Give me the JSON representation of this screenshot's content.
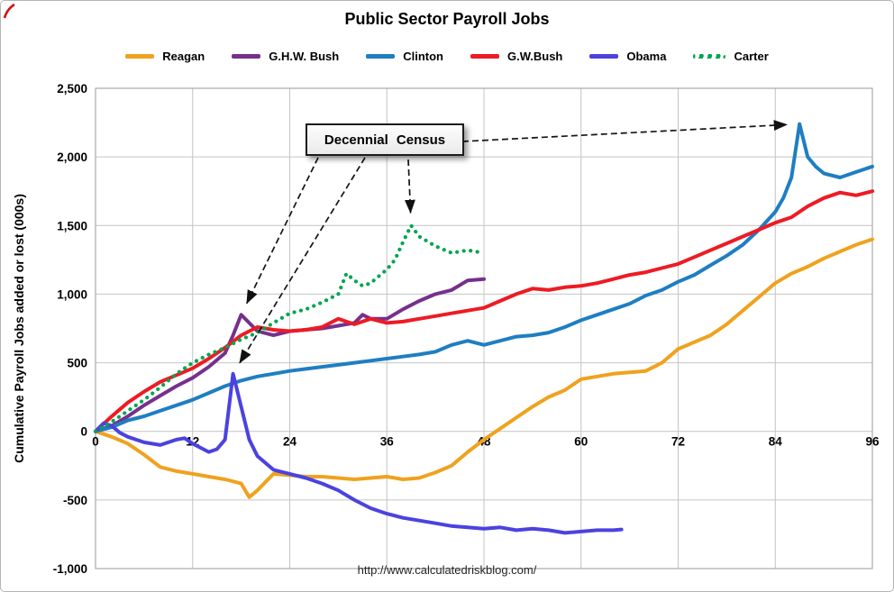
{
  "page": {
    "source_url": "http://www.calculatedriskblog.com/"
  },
  "chart_data": {
    "type": "line",
    "title": "Public Sector Payroll Jobs",
    "xlabel": "",
    "ylabel": "Cumulative Payroll Jobs added or lost (000s)",
    "xlim": [
      0,
      96
    ],
    "ylim": [
      -1000,
      2500
    ],
    "xticks": [
      0,
      12,
      24,
      36,
      48,
      60,
      72,
      84,
      96
    ],
    "yticks": [
      -1000,
      -500,
      0,
      500,
      1000,
      1500,
      2000,
      2500
    ],
    "grid": true,
    "legend_position": "top",
    "annotation": {
      "label": "Decennial Census",
      "targets": [
        {
          "series": "G.H.W. Bush",
          "x": 18,
          "y": 850
        },
        {
          "series": "Obama",
          "x": 17,
          "y": 420
        },
        {
          "series": "Carter",
          "x": 39,
          "y": 1500
        },
        {
          "series": "Clinton",
          "x": 87,
          "y": 2240
        }
      ]
    },
    "series": [
      {
        "name": "Reagan",
        "color": "#EFA21E",
        "style": "solid",
        "x": [
          0,
          2,
          4,
          6,
          8,
          10,
          12,
          14,
          16,
          18,
          19,
          20,
          22,
          24,
          26,
          28,
          30,
          32,
          34,
          36,
          38,
          40,
          42,
          44,
          46,
          48,
          50,
          52,
          54,
          56,
          58,
          60,
          62,
          64,
          66,
          68,
          70,
          72,
          74,
          76,
          78,
          80,
          82,
          84,
          86,
          88,
          90,
          92,
          94,
          96
        ],
        "y": [
          0,
          -40,
          -90,
          -170,
          -260,
          -290,
          -310,
          -330,
          -350,
          -380,
          -480,
          -430,
          -310,
          -320,
          -330,
          -330,
          -340,
          -350,
          -340,
          -330,
          -350,
          -340,
          -300,
          -250,
          -150,
          -60,
          20,
          100,
          180,
          250,
          300,
          380,
          400,
          420,
          430,
          440,
          500,
          600,
          650,
          700,
          780,
          880,
          980,
          1080,
          1150,
          1200,
          1260,
          1310,
          1360,
          1400
        ]
      },
      {
        "name": "G.H.W. Bush",
        "color": "#76308C",
        "style": "solid",
        "x": [
          0,
          2,
          4,
          6,
          8,
          10,
          12,
          14,
          16,
          17,
          18,
          19,
          20,
          22,
          24,
          26,
          28,
          30,
          32,
          33,
          34,
          36,
          38,
          40,
          42,
          44,
          46,
          48
        ],
        "y": [
          0,
          40,
          110,
          190,
          260,
          330,
          390,
          470,
          570,
          700,
          850,
          790,
          730,
          700,
          730,
          740,
          750,
          770,
          790,
          850,
          820,
          820,
          890,
          950,
          1000,
          1030,
          1100,
          1110
        ]
      },
      {
        "name": "Clinton",
        "color": "#1F7EC2",
        "style": "solid",
        "x": [
          0,
          2,
          4,
          6,
          8,
          10,
          12,
          14,
          16,
          18,
          20,
          22,
          24,
          26,
          28,
          30,
          32,
          34,
          36,
          38,
          40,
          42,
          44,
          46,
          48,
          50,
          52,
          54,
          56,
          58,
          60,
          62,
          64,
          66,
          68,
          70,
          72,
          74,
          76,
          78,
          80,
          82,
          84,
          85,
          86,
          87,
          88,
          89,
          90,
          92,
          94,
          96
        ],
        "y": [
          0,
          30,
          80,
          110,
          150,
          190,
          230,
          280,
          330,
          370,
          400,
          420,
          440,
          455,
          470,
          485,
          500,
          515,
          530,
          545,
          560,
          580,
          630,
          660,
          630,
          660,
          690,
          700,
          720,
          760,
          810,
          850,
          890,
          930,
          990,
          1030,
          1090,
          1140,
          1210,
          1280,
          1360,
          1470,
          1600,
          1700,
          1850,
          2240,
          2000,
          1930,
          1880,
          1850,
          1890,
          1930
        ]
      },
      {
        "name": "G.W.Bush",
        "color": "#ED1B24",
        "style": "solid",
        "x": [
          0,
          2,
          4,
          6,
          8,
          10,
          12,
          14,
          16,
          18,
          20,
          22,
          24,
          26,
          28,
          30,
          32,
          34,
          36,
          38,
          40,
          42,
          44,
          46,
          48,
          50,
          52,
          54,
          56,
          58,
          60,
          62,
          64,
          66,
          68,
          70,
          72,
          74,
          76,
          78,
          80,
          82,
          84,
          86,
          88,
          90,
          92,
          94,
          96
        ],
        "y": [
          0,
          110,
          210,
          290,
          360,
          410,
          460,
          530,
          610,
          700,
          760,
          740,
          730,
          740,
          760,
          820,
          780,
          820,
          790,
          800,
          820,
          840,
          860,
          880,
          900,
          950,
          1000,
          1040,
          1030,
          1050,
          1060,
          1080,
          1110,
          1140,
          1160,
          1190,
          1220,
          1270,
          1320,
          1370,
          1420,
          1470,
          1520,
          1560,
          1640,
          1700,
          1740,
          1720,
          1750
        ]
      },
      {
        "name": "Obama",
        "color": "#4B42E0",
        "style": "solid",
        "x": [
          0,
          1,
          2,
          3,
          4,
          6,
          8,
          10,
          11,
          12,
          13,
          14,
          15,
          16,
          17,
          18,
          19,
          20,
          22,
          24,
          26,
          28,
          30,
          32,
          34,
          36,
          38,
          40,
          42,
          44,
          46,
          48,
          50,
          52,
          54,
          56,
          58,
          60,
          62,
          64,
          65
        ],
        "y": [
          0,
          60,
          40,
          -10,
          -40,
          -80,
          -100,
          -60,
          -50,
          -90,
          -120,
          -150,
          -130,
          -60,
          420,
          180,
          -60,
          -180,
          -280,
          -310,
          -340,
          -380,
          -430,
          -500,
          -560,
          -600,
          -630,
          -650,
          -670,
          -690,
          -700,
          -710,
          -700,
          -720,
          -710,
          -720,
          -740,
          -730,
          -720,
          -720,
          -715
        ]
      },
      {
        "name": "Carter",
        "color": "#00A550",
        "style": "dotted",
        "x": [
          0,
          2,
          4,
          6,
          8,
          10,
          12,
          14,
          16,
          18,
          20,
          22,
          24,
          26,
          28,
          30,
          31,
          32,
          33,
          34,
          36,
          37,
          38,
          39,
          40,
          42,
          44,
          46,
          48
        ],
        "y": [
          0,
          70,
          150,
          230,
          320,
          420,
          500,
          560,
          610,
          670,
          720,
          790,
          860,
          890,
          940,
          1000,
          1150,
          1100,
          1060,
          1080,
          1180,
          1250,
          1380,
          1500,
          1420,
          1350,
          1300,
          1320,
          1300
        ]
      }
    ]
  }
}
